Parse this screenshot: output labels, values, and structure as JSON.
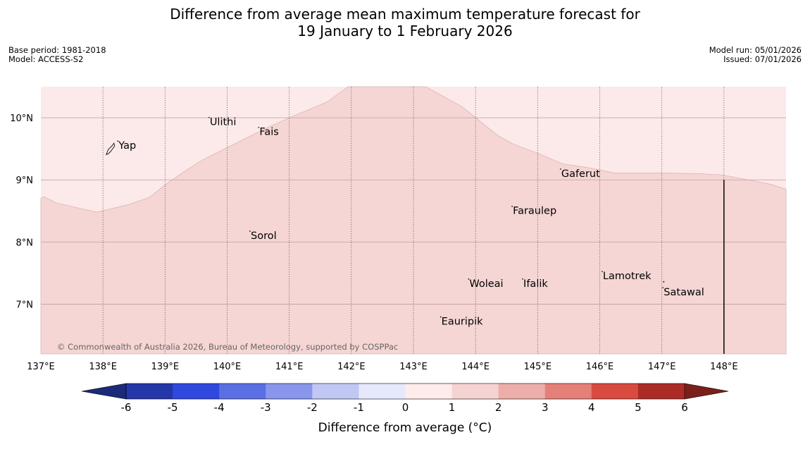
{
  "title": {
    "line1": "Difference from average mean maximum temperature forecast for",
    "line2": "19 January to 1 February 2026"
  },
  "meta_left": {
    "base_period": "Base period: 1981-2018",
    "model": "Model: ACCESS-S2"
  },
  "meta_right": {
    "model_run": "Model run: 05/01/2026",
    "issued": "Issued: 07/01/2026"
  },
  "copyright": "© Commonwealth of Australia 2026, Bureau of Meteorology, supported by COSPPac",
  "map": {
    "lon_range": [
      137,
      149
    ],
    "lat_range": [
      6.2,
      10.5
    ],
    "lon_ticks": [
      "137°E",
      "138°E",
      "139°E",
      "140°E",
      "141°E",
      "142°E",
      "143°E",
      "144°E",
      "145°E",
      "146°E",
      "147°E",
      "148°E"
    ],
    "lat_ticks": [
      "10°N",
      "9°N",
      "8°N",
      "7°N"
    ],
    "shading": [
      {
        "band": "0 to 1",
        "color": "#fbeae9"
      },
      {
        "band": "1 to 2",
        "color": "#f5d6d5"
      }
    ],
    "places": [
      {
        "name": "Yap",
        "lon": 138.25,
        "lat": 9.5
      },
      {
        "name": "Ulithi",
        "lon": 139.72,
        "lat": 9.88
      },
      {
        "name": "Fais",
        "lon": 140.52,
        "lat": 9.72
      },
      {
        "name": "Sorol",
        "lon": 140.38,
        "lat": 8.05
      },
      {
        "name": "Gaferut",
        "lon": 145.38,
        "lat": 9.05
      },
      {
        "name": "Faraulep",
        "lon": 144.6,
        "lat": 8.45
      },
      {
        "name": "Woleai",
        "lon": 143.9,
        "lat": 7.28
      },
      {
        "name": "Ifalik",
        "lon": 144.77,
        "lat": 7.28
      },
      {
        "name": "Lamotrek",
        "lon": 146.05,
        "lat": 7.4
      },
      {
        "name": "Satawal",
        "lon": 147.03,
        "lat": 7.14
      },
      {
        "name": "Eauripik",
        "lon": 143.45,
        "lat": 6.67
      }
    ]
  },
  "colorbar": {
    "title": "Difference from average (°C)",
    "ticks": [
      "-6",
      "-5",
      "-4",
      "-3",
      "-2",
      "-1",
      "0",
      "1",
      "2",
      "3",
      "4",
      "5",
      "6"
    ],
    "colors": [
      "#2337a7",
      "#3048de",
      "#5b6fe4",
      "#8896ec",
      "#c0c7f3",
      "#e6e9fb",
      "#fdeceb",
      "#f5d3d2",
      "#edaeaa",
      "#e58078",
      "#d94a40",
      "#ab2c26"
    ],
    "under_color": "#1c2a7a",
    "over_color": "#7b1f1b"
  }
}
